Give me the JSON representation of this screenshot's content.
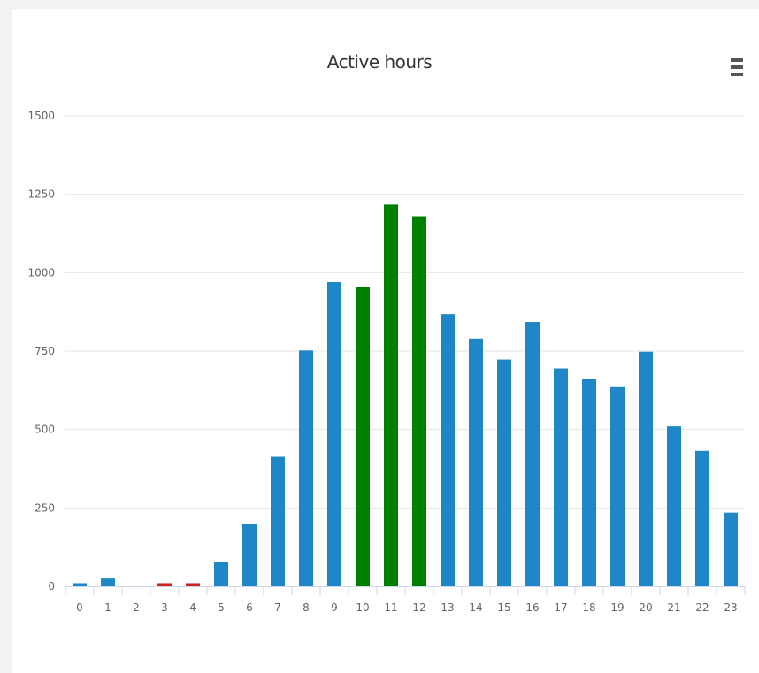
{
  "chart_data": {
    "type": "bar",
    "title": "Active hours",
    "xlabel": "",
    "ylabel": "",
    "categories": [
      "0",
      "1",
      "2",
      "3",
      "4",
      "5",
      "6",
      "7",
      "8",
      "9",
      "10",
      "11",
      "12",
      "13",
      "14",
      "15",
      "16",
      "17",
      "18",
      "19",
      "20",
      "21",
      "22",
      "23"
    ],
    "values": [
      10,
      25,
      0,
      10,
      10,
      78,
      200,
      413,
      752,
      970,
      955,
      1217,
      1180,
      868,
      790,
      723,
      843,
      695,
      660,
      635,
      748,
      510,
      432,
      235
    ],
    "bar_colors": [
      "#1f86c8",
      "#1f86c8",
      "#1f86c8",
      "#cc2222",
      "#cc2222",
      "#1f86c8",
      "#1f86c8",
      "#1f86c8",
      "#1f86c8",
      "#1f86c8",
      "#008000",
      "#008000",
      "#008000",
      "#1f86c8",
      "#1f86c8",
      "#1f86c8",
      "#1f86c8",
      "#1f86c8",
      "#1f86c8",
      "#1f86c8",
      "#1f86c8",
      "#1f86c8",
      "#1f86c8",
      "#1f86c8"
    ],
    "ylim": [
      0,
      1500
    ],
    "yticks": [
      "0",
      "250",
      "500",
      "750",
      "1000",
      "1250",
      "1500"
    ],
    "grid": true,
    "legend": "none"
  },
  "colors": {
    "normal": "#1f86c8",
    "peak": "#008000",
    "low": "#cc2222",
    "grid": "#e6e6e6"
  },
  "menu": {
    "icon": "hamburger-menu-icon"
  }
}
